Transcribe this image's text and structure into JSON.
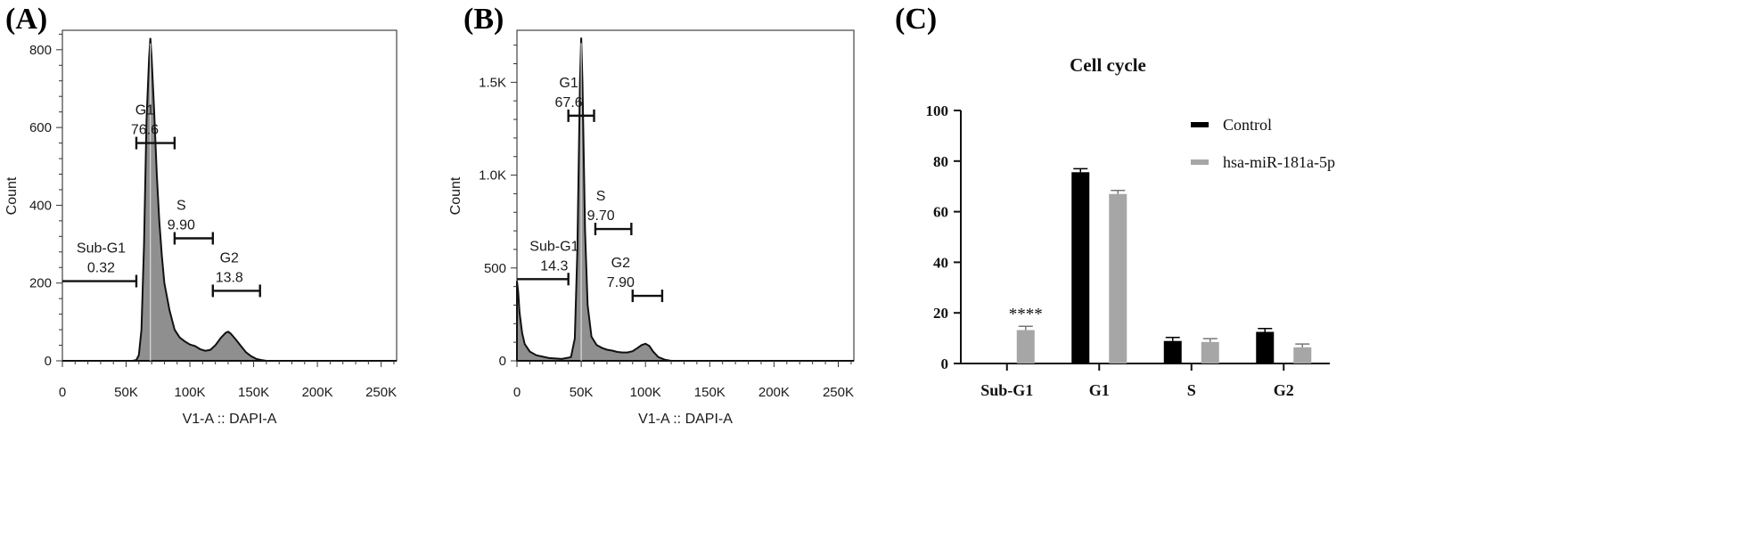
{
  "panels": [
    {
      "label": "(A)",
      "chart_data": {
        "type": "area",
        "xlabel": "V1-A :: DAPI-A",
        "ylabel": "Count",
        "xlim": [
          0,
          262144
        ],
        "ylim": [
          0,
          850
        ],
        "x_ticks": [
          0,
          50000,
          100000,
          150000,
          200000,
          250000
        ],
        "x_tick_labels": [
          "0",
          "50K",
          "100K",
          "150K",
          "200K",
          "250K"
        ],
        "y_ticks": [
          0,
          200,
          400,
          600,
          800
        ],
        "y_tick_labels": [
          "0",
          "200",
          "400",
          "600",
          "800"
        ],
        "histogram": {
          "x": [
            0,
            55000,
            58000,
            60000,
            62000,
            64000,
            66000,
            68000,
            69000,
            70000,
            72000,
            74000,
            76000,
            78000,
            80000,
            84000,
            88000,
            92000,
            96000,
            100000,
            104000,
            108000,
            112000,
            116000,
            120000,
            124000,
            128000,
            130000,
            132000,
            136000,
            140000,
            144000,
            148000,
            152000,
            156000,
            160000,
            200000,
            262144
          ],
          "y": [
            0,
            0,
            2,
            15,
            80,
            300,
            620,
            780,
            830,
            780,
            640,
            480,
            360,
            270,
            200,
            130,
            80,
            60,
            50,
            42,
            38,
            30,
            26,
            28,
            40,
            58,
            72,
            75,
            70,
            55,
            38,
            22,
            12,
            5,
            2,
            0,
            0,
            0
          ]
        },
        "gates": [
          {
            "name": "Sub-G1",
            "value": "0.32",
            "x_range": [
              0,
              58000
            ],
            "y": 205
          },
          {
            "name": "G1",
            "value": "76.6",
            "x_range": [
              58000,
              88000
            ],
            "y": 560
          },
          {
            "name": "S",
            "value": "9.90",
            "x_range": [
              88000,
              118000
            ],
            "y": 315
          },
          {
            "name": "G2",
            "value": "13.8",
            "x_range": [
              118000,
              155000
            ],
            "y": 180
          }
        ]
      }
    },
    {
      "label": "(B)",
      "chart_data": {
        "type": "area",
        "xlabel": "V1-A :: DAPI-A",
        "ylabel": "Count",
        "xlim": [
          0,
          262144
        ],
        "ylim": [
          0,
          1780
        ],
        "x_ticks": [
          0,
          50000,
          100000,
          150000,
          200000,
          250000
        ],
        "x_tick_labels": [
          "0",
          "50K",
          "100K",
          "150K",
          "200K",
          "250K"
        ],
        "y_ticks": [
          0,
          500,
          1000,
          1500
        ],
        "y_tick_labels": [
          "0",
          "500",
          "1.0K",
          "1.5K"
        ],
        "histogram": {
          "x": [
            0,
            1000,
            2000,
            4000,
            6000,
            10000,
            15000,
            25000,
            35000,
            42000,
            45000,
            47000,
            49000,
            50000,
            51000,
            53000,
            55000,
            58000,
            62000,
            66000,
            70000,
            74000,
            78000,
            82000,
            86000,
            90000,
            94000,
            97000,
            100000,
            103000,
            106000,
            110000,
            115000,
            120000,
            262144
          ],
          "y": [
            430,
            370,
            260,
            150,
            90,
            50,
            30,
            15,
            10,
            20,
            120,
            600,
            1500,
            1740,
            1500,
            700,
            300,
            130,
            85,
            70,
            60,
            55,
            48,
            45,
            45,
            52,
            70,
            85,
            92,
            80,
            50,
            20,
            6,
            0,
            0
          ]
        },
        "gates": [
          {
            "name": "Sub-G1",
            "value": "14.3",
            "x_range": [
              0,
              40000
            ],
            "y": 440
          },
          {
            "name": "G1",
            "value": "67.6",
            "x_range": [
              40000,
              60000
            ],
            "y": 1320
          },
          {
            "name": "S",
            "value": "9.70",
            "x_range": [
              61000,
              89000
            ],
            "y": 710
          },
          {
            "name": "G2",
            "value": "7.90",
            "x_range": [
              90000,
              113000
            ],
            "y": 350
          }
        ]
      }
    },
    {
      "label": "(C)",
      "chart_data": {
        "type": "bar",
        "title": "Cell cycle",
        "xlabel": "",
        "ylabel": "",
        "ylim": [
          0,
          100
        ],
        "y_ticks": [
          0,
          20,
          40,
          60,
          80,
          100
        ],
        "y_tick_labels": [
          "0",
          "20",
          "40",
          "60",
          "80",
          "100"
        ],
        "categories": [
          "Sub-G1",
          "G1",
          "S",
          "G2"
        ],
        "series": [
          {
            "name": "Control",
            "color": "#000000",
            "values": [
              0,
              75.6,
              8.9,
              12.5
            ],
            "errors": [
              0,
              1.4,
              1.4,
              1.3
            ]
          },
          {
            "name": "hsa-miR-181a-5p",
            "color": "#a6a6a6",
            "values": [
              13.2,
              67.0,
              8.5,
              6.4
            ],
            "errors": [
              1.5,
              1.4,
              1.3,
              1.3
            ]
          }
        ],
        "annotations": [
          {
            "category": "Sub-G1",
            "series": 1,
            "text": "****"
          }
        ],
        "legend_position": "top-right"
      }
    }
  ]
}
